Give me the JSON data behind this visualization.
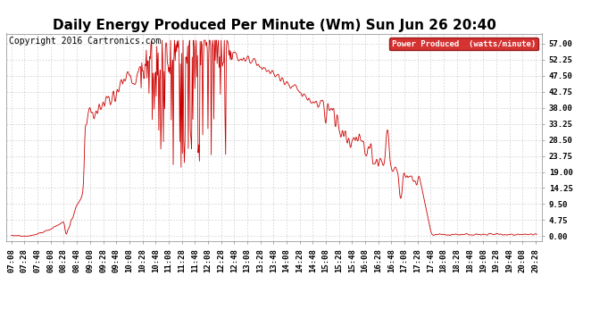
{
  "title": "Daily Energy Produced Per Minute (Wm) Sun Jun 26 20:40",
  "copyright": "Copyright 2016 Cartronics.com",
  "legend_label": "Power Produced  (watts/minute)",
  "legend_bg": "#cc0000",
  "legend_fg": "#ffffff",
  "line_color": "#cc0000",
  "bg_color": "#ffffff",
  "grid_color": "#bbbbbb",
  "yticks": [
    0.0,
    4.75,
    9.5,
    14.25,
    19.0,
    23.75,
    28.5,
    33.25,
    38.0,
    42.75,
    47.5,
    52.25,
    57.0
  ],
  "ylim": [
    -1.5,
    60.0
  ],
  "title_fontsize": 11,
  "copyright_fontsize": 7,
  "axis_fontsize": 6.5
}
